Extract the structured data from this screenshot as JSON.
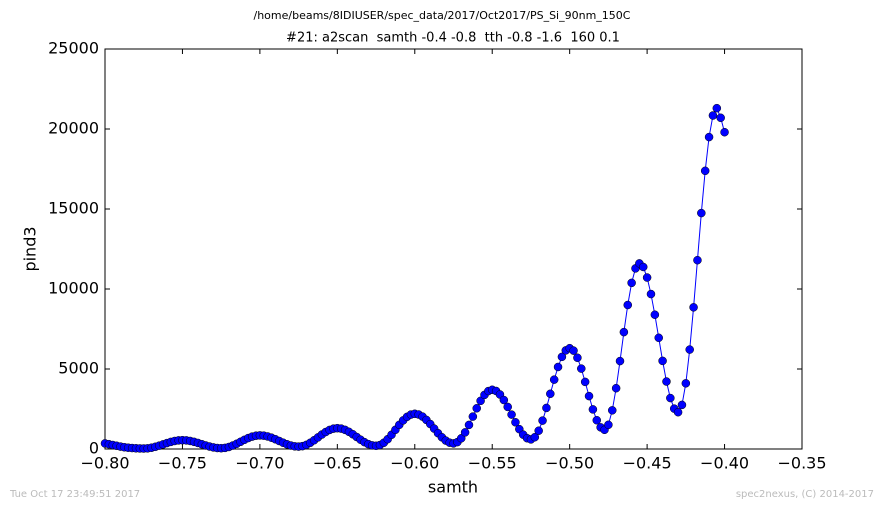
{
  "chart_data": {
    "type": "line",
    "title": "/home/beams/8IDIUSER/spec_data/2017/Oct2017/PS_Si_90nm_150C",
    "subtitle": "#21: a2scan  samth -0.4 -0.8  tth -0.8 -1.6  160 0.1",
    "xlabel": "samth",
    "ylabel": "pind3",
    "footer_left": "Tue Oct 17 23:49:51 2017",
    "footer_right": "spec2nexus, (C) 2014-2017",
    "color": "#0000ff",
    "x": [
      -0.8,
      -0.7975,
      -0.795,
      -0.7925,
      -0.79,
      -0.7875,
      -0.785,
      -0.7825,
      -0.78,
      -0.7775,
      -0.775,
      -0.7725,
      -0.77,
      -0.7675,
      -0.765,
      -0.7625,
      -0.76,
      -0.7575,
      -0.755,
      -0.7525,
      -0.75,
      -0.7475,
      -0.745,
      -0.7425,
      -0.74,
      -0.7375,
      -0.735,
      -0.7325,
      -0.73,
      -0.7275,
      -0.725,
      -0.7225,
      -0.72,
      -0.7175,
      -0.715,
      -0.7125,
      -0.71,
      -0.7075,
      -0.705,
      -0.7025,
      -0.7,
      -0.6975,
      -0.695,
      -0.6925,
      -0.69,
      -0.6875,
      -0.685,
      -0.6825,
      -0.68,
      -0.6775,
      -0.675,
      -0.6725,
      -0.67,
      -0.6675,
      -0.665,
      -0.6625,
      -0.66,
      -0.6575,
      -0.655,
      -0.6525,
      -0.65,
      -0.6475,
      -0.645,
      -0.6425,
      -0.64,
      -0.6375,
      -0.635,
      -0.6325,
      -0.63,
      -0.6275,
      -0.625,
      -0.6225,
      -0.62,
      -0.6175,
      -0.615,
      -0.6125,
      -0.61,
      -0.6075,
      -0.605,
      -0.6025,
      -0.6,
      -0.5975,
      -0.595,
      -0.5925,
      -0.59,
      -0.5875,
      -0.585,
      -0.5825,
      -0.58,
      -0.5775,
      -0.575,
      -0.5725,
      -0.57,
      -0.5675,
      -0.565,
      -0.5625,
      -0.56,
      -0.5575,
      -0.555,
      -0.5525,
      -0.55,
      -0.5475,
      -0.545,
      -0.5425,
      -0.54,
      -0.5375,
      -0.535,
      -0.5325,
      -0.53,
      -0.5275,
      -0.525,
      -0.5225,
      -0.52,
      -0.5175,
      -0.515,
      -0.5125,
      -0.51,
      -0.5075,
      -0.505,
      -0.5025,
      -0.5,
      -0.4975,
      -0.495,
      -0.4925,
      -0.49,
      -0.4875,
      -0.485,
      -0.4825,
      -0.48,
      -0.4775,
      -0.475,
      -0.4725,
      -0.47,
      -0.4675,
      -0.465,
      -0.4625,
      -0.46,
      -0.4575,
      -0.455,
      -0.4525,
      -0.45,
      -0.4475,
      -0.445,
      -0.4425,
      -0.44,
      -0.4375,
      -0.435,
      -0.4325,
      -0.43,
      -0.4275,
      -0.425,
      -0.4225,
      -0.42,
      -0.4175,
      -0.415,
      -0.4125,
      -0.41,
      -0.4075,
      -0.405,
      -0.4025,
      -0.4
    ],
    "values": [
      350,
      300,
      250,
      200,
      150,
      110,
      80,
      60,
      45,
      35,
      30,
      42,
      79,
      137,
      209,
      290,
      371,
      443,
      501,
      538,
      550,
      538,
      502,
      447,
      378,
      300,
      222,
      153,
      98,
      62,
      50,
      69,
      126,
      215,
      326,
      450,
      574,
      685,
      774,
      831,
      850,
      833,
      784,
      706,
      609,
      500,
      392,
      294,
      217,
      167,
      150,
      178,
      259,
      387,
      547,
      725,
      903,
      1063,
      1191,
      1272,
      1300,
      1274,
      1196,
      1073,
      920,
      750,
      580,
      427,
      305,
      226,
      200,
      248,
      390,
      612,
      890,
      1200,
      1510,
      1788,
      2010,
      2152,
      2200,
      2156,
      2024,
      1818,
      1561,
      1275,
      988,
      732,
      526,
      394,
      350,
      430,
      668,
      1040,
      1506,
      2025,
      2544,
      3010,
      3382,
      3620,
      3700,
      3626,
      3406,
      3061,
      2630,
      2150,
      1670,
      1239,
      895,
      674,
      600,
      737,
      1142,
      1774,
      2567,
      3450,
      4334,
      5126,
      5759,
      6163,
      6300,
      6147,
      5703,
      5025,
      4194,
      3306,
      2475,
      1797,
      1353,
      1200,
      1512,
      2417,
      3800,
      5495,
      7305,
      9000,
      10383,
      11288,
      11600,
      11377,
      10717,
      9684,
      8392,
      6950,
      5508,
      4216,
      3184,
      2523,
      2300,
      2756,
      4105,
      6214,
      8855,
      11800,
      14745,
      17386,
      19495,
      20844,
      21300,
      20700,
      19800
    ],
    "xlim": [
      -0.8,
      -0.35
    ],
    "xticks": [
      {
        "value": -0.8,
        "label": "−0.80"
      },
      {
        "value": -0.75,
        "label": "−0.75"
      },
      {
        "value": -0.7,
        "label": "−0.70"
      },
      {
        "value": -0.65,
        "label": "−0.65"
      },
      {
        "value": -0.6,
        "label": "−0.60"
      },
      {
        "value": -0.55,
        "label": "−0.55"
      },
      {
        "value": -0.5,
        "label": "−0.50"
      },
      {
        "value": -0.45,
        "label": "−0.45"
      },
      {
        "value": -0.4,
        "label": "−0.40"
      },
      {
        "value": -0.35,
        "label": "−0.35"
      }
    ],
    "ylim": [
      0,
      25000
    ],
    "yticks": [
      0,
      5000,
      10000,
      15000,
      20000,
      25000
    ]
  }
}
